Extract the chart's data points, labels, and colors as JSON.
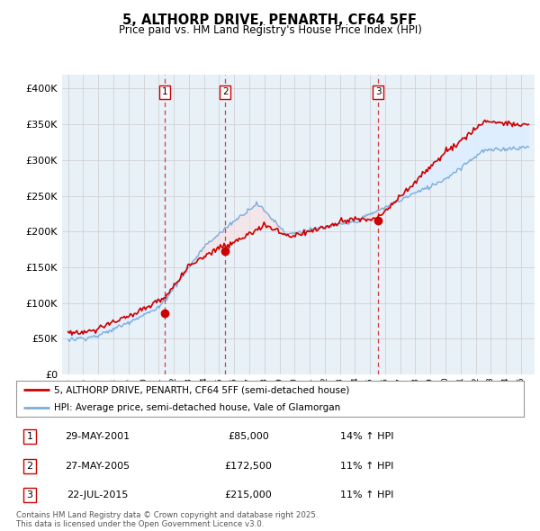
{
  "title": "5, ALTHORP DRIVE, PENARTH, CF64 5FF",
  "subtitle": "Price paid vs. HM Land Registry's House Price Index (HPI)",
  "hpi_label": "HPI: Average price, semi-detached house, Vale of Glamorgan",
  "property_label": "5, ALTHORP DRIVE, PENARTH, CF64 5FF (semi-detached house)",
  "transactions": [
    {
      "num": 1,
      "date": "29-MAY-2001",
      "price": 85000,
      "hpi_pct": "14% ↑ HPI"
    },
    {
      "num": 2,
      "date": "27-MAY-2005",
      "price": 172500,
      "hpi_pct": "11% ↑ HPI"
    },
    {
      "num": 3,
      "date": "22-JUL-2015",
      "price": 215000,
      "hpi_pct": "11% ↑ HPI"
    }
  ],
  "transaction_years": [
    2001.4,
    2005.4,
    2015.55
  ],
  "transaction_prices": [
    85000,
    172500,
    215000
  ],
  "ylim": [
    0,
    420000
  ],
  "yticks": [
    0,
    50000,
    100000,
    150000,
    200000,
    250000,
    300000,
    350000,
    400000
  ],
  "red_color": "#cc0000",
  "blue_color": "#7aaddb",
  "fill_color": "#ddeeff",
  "grid_color": "#cccccc",
  "bg_color": "#e8f0f8",
  "footnote": "Contains HM Land Registry data © Crown copyright and database right 2025.\nThis data is licensed under the Open Government Licence v3.0."
}
